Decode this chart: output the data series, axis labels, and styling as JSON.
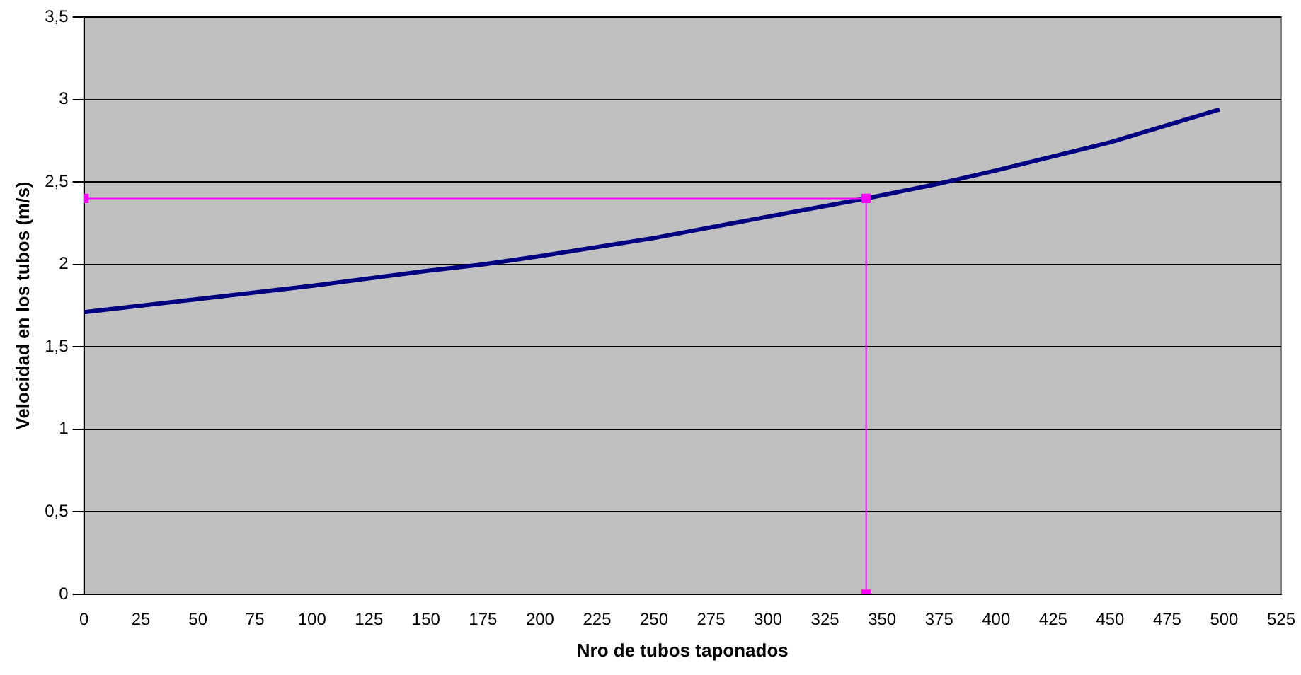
{
  "chart_data": {
    "type": "line",
    "xlabel": "Nro de tubos taponados",
    "ylabel": "Velocidad en los tubos (m/s)",
    "xlim": [
      0,
      525
    ],
    "xticks": [
      0,
      25,
      50,
      75,
      100,
      125,
      150,
      175,
      200,
      225,
      250,
      275,
      300,
      325,
      350,
      375,
      400,
      425,
      450,
      475,
      500,
      525
    ],
    "ylim": [
      0,
      3.5
    ],
    "yticks": [
      0,
      {
        "value": 0.5,
        "label": "0,5"
      },
      1,
      {
        "value": 1.5,
        "label": "1,5"
      },
      2,
      {
        "value": 2.5,
        "label": "2,5"
      },
      3,
      {
        "value": 3.5,
        "label": "3,5"
      }
    ],
    "grid": "y",
    "legend": false,
    "series": [
      {
        "color": "#000080",
        "marker": "none",
        "x": [
          0,
          50,
          100,
          150,
          175,
          200,
          250,
          300,
          343,
          375,
          400,
          450,
          498
        ],
        "values": [
          1.71,
          1.79,
          1.87,
          1.96,
          2.0,
          2.05,
          2.16,
          2.29,
          2.4,
          2.49,
          2.57,
          2.74,
          2.94
        ]
      },
      {
        "color": "#ff00ff",
        "marker": "square",
        "x": [
          0,
          343,
          343
        ],
        "values": [
          2.4,
          2.4,
          0
        ]
      }
    ]
  }
}
